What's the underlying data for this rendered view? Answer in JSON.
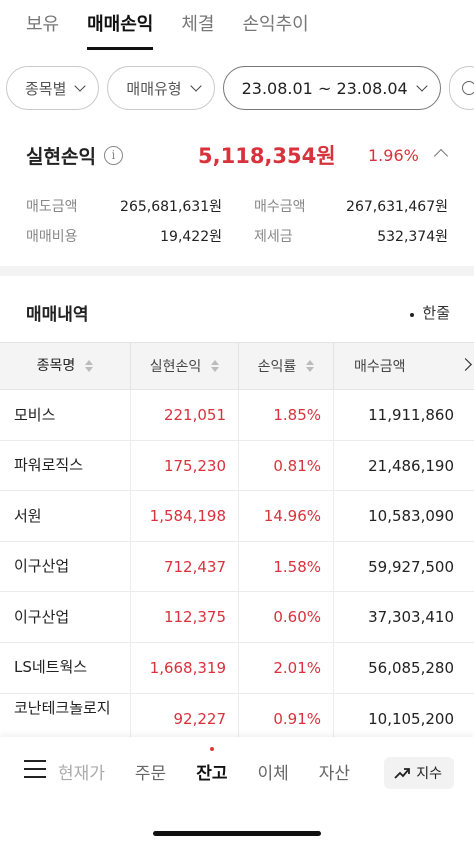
{
  "top_tabs": [
    {
      "label": "보유",
      "active": false
    },
    {
      "label": "매매손익",
      "active": true
    },
    {
      "label": "체결",
      "active": false
    },
    {
      "label": "손익추이",
      "active": false
    }
  ],
  "filters": {
    "by_stock": "종목별",
    "trade_type": "매매유형",
    "date_range": "23.08.01 ~ 23.08.04"
  },
  "summary": {
    "realized_label": "실현손익",
    "realized_value": "5,118,354원",
    "realized_rate": "1.96%",
    "sell_amount_label": "매도금액",
    "sell_amount": "265,681,631원",
    "buy_amount_label": "매수금액",
    "buy_amount": "267,631,467원",
    "trade_cost_label": "매매비용",
    "trade_cost": "19,422원",
    "tax_label": "제세금",
    "tax": "532,374원"
  },
  "trade_section": {
    "title": "매매내역",
    "unit_toggle": "한줄"
  },
  "table": {
    "columns": [
      "종목명",
      "실현손익",
      "손익률",
      "매수금액"
    ],
    "rows": [
      {
        "name": "모비스",
        "pl": "221,051",
        "rate": "1.85%",
        "buy": "11,911,860"
      },
      {
        "name": "파워로직스",
        "pl": "175,230",
        "rate": "0.81%",
        "buy": "21,486,190"
      },
      {
        "name": "서원",
        "pl": "1,584,198",
        "rate": "14.96%",
        "buy": "10,583,090"
      },
      {
        "name": "이구산업",
        "pl": "712,437",
        "rate": "1.58%",
        "buy": "59,927,500"
      },
      {
        "name": "이구산업",
        "pl": "112,375",
        "rate": "0.60%",
        "buy": "37,303,410"
      },
      {
        "name": "LS네트웍스",
        "pl": "1,668,319",
        "rate": "2.01%",
        "buy": "56,085,280"
      },
      {
        "name": "코난테크놀로지",
        "pl": "92,227",
        "rate": "0.91%",
        "buy": "10,105,200"
      }
    ]
  },
  "bottom_nav": {
    "items": [
      {
        "label": "현재가",
        "active": false
      },
      {
        "label": "주문",
        "active": false
      },
      {
        "label": "잔고",
        "active": true
      },
      {
        "label": "이체",
        "active": false
      },
      {
        "label": "자산",
        "active": false
      }
    ],
    "index_button": "지수"
  },
  "colors": {
    "profit_red": "#d8323c",
    "active_dot": "#e03a3a"
  }
}
